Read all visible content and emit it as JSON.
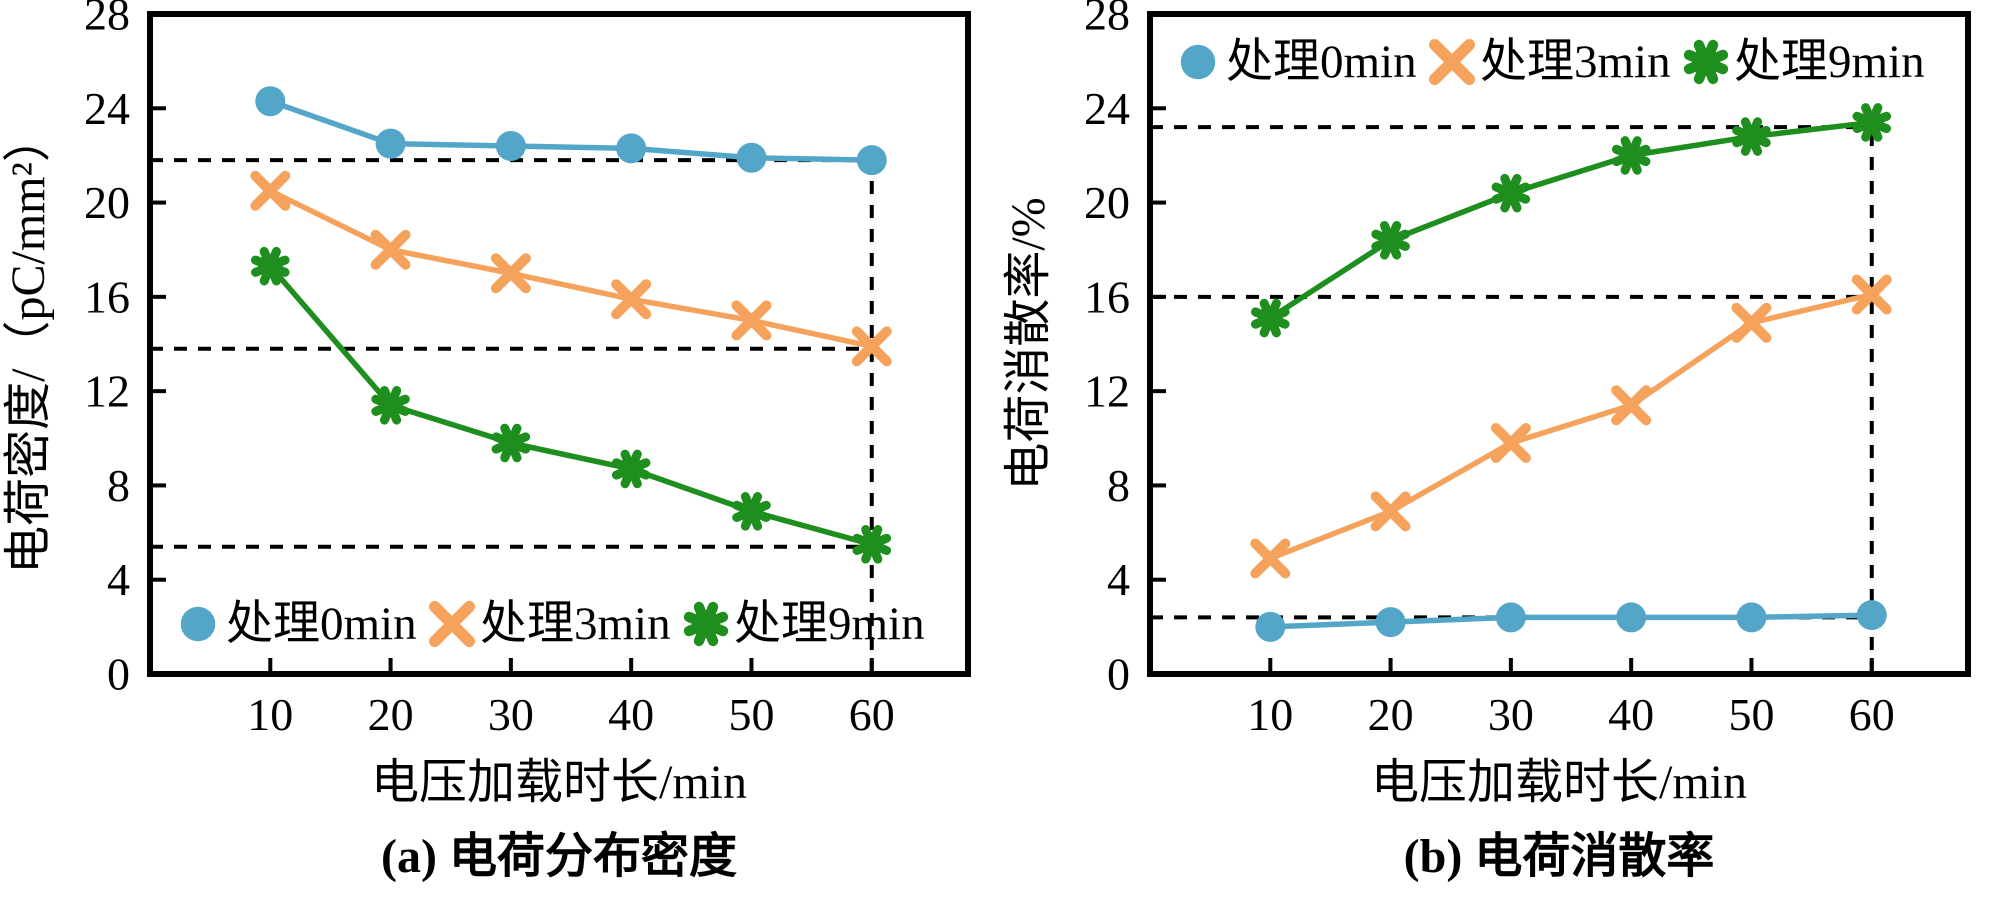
{
  "figure": {
    "background": "#ffffff",
    "axis_color": "#000000",
    "guide_style": "black-dashed"
  },
  "chart_data": [
    {
      "id": "a",
      "type": "line",
      "caption": "(a) 电荷分布密度",
      "xlabel": "电压加载时长/min",
      "ylabel": "电荷密度/（pC/mm²）",
      "xlim": [
        0,
        68
      ],
      "ylim": [
        0,
        28
      ],
      "xticks": [
        10,
        20,
        30,
        40,
        50,
        60
      ],
      "yticks": [
        0,
        4,
        8,
        12,
        16,
        20,
        24,
        28
      ],
      "grid": false,
      "x": [
        10,
        20,
        30,
        40,
        50,
        60
      ],
      "series": [
        {
          "name": "处理0min",
          "marker": "circle",
          "color": "#54a6c8",
          "values": [
            24.3,
            22.5,
            22.4,
            22.3,
            21.9,
            21.8
          ]
        },
        {
          "name": "处理3min",
          "marker": "x",
          "color": "#f5a35c",
          "values": [
            20.5,
            18.0,
            17.0,
            15.9,
            15.0,
            13.9
          ]
        },
        {
          "name": "处理9min",
          "marker": "asterisk",
          "color": "#1e8f1e",
          "values": [
            17.3,
            11.4,
            9.8,
            8.7,
            6.9,
            5.5
          ]
        }
      ],
      "guides": {
        "h": [
          21.8,
          13.8,
          5.4
        ],
        "v": [
          60
        ]
      },
      "legend": {
        "position": "bottom",
        "labels": [
          "处理0min",
          "处理3min",
          "处理9min"
        ]
      }
    },
    {
      "id": "b",
      "type": "line",
      "caption": "(b) 电荷消散率",
      "xlabel": "电压加载时长/min",
      "ylabel": "电荷消散率/%",
      "xlim": [
        0,
        68
      ],
      "ylim": [
        0,
        28
      ],
      "xticks": [
        10,
        20,
        30,
        40,
        50,
        60
      ],
      "yticks": [
        0,
        4,
        8,
        12,
        16,
        20,
        24,
        28
      ],
      "grid": false,
      "x": [
        10,
        20,
        30,
        40,
        50,
        60
      ],
      "series": [
        {
          "name": "处理0min",
          "marker": "circle",
          "color": "#54a6c8",
          "values": [
            2.0,
            2.2,
            2.4,
            2.4,
            2.4,
            2.5
          ]
        },
        {
          "name": "处理3min",
          "marker": "x",
          "color": "#f5a35c",
          "values": [
            4.9,
            6.9,
            9.8,
            11.4,
            14.9,
            16.1
          ]
        },
        {
          "name": "处理9min",
          "marker": "asterisk",
          "color": "#1e8f1e",
          "values": [
            15.1,
            18.4,
            20.4,
            22.0,
            22.8,
            23.4
          ]
        }
      ],
      "guides": {
        "h": [
          23.2,
          16.0,
          2.4
        ],
        "v": [
          60
        ]
      },
      "legend": {
        "position": "top",
        "labels": [
          "处理0min",
          "处理3min",
          "处理9min"
        ]
      }
    }
  ]
}
